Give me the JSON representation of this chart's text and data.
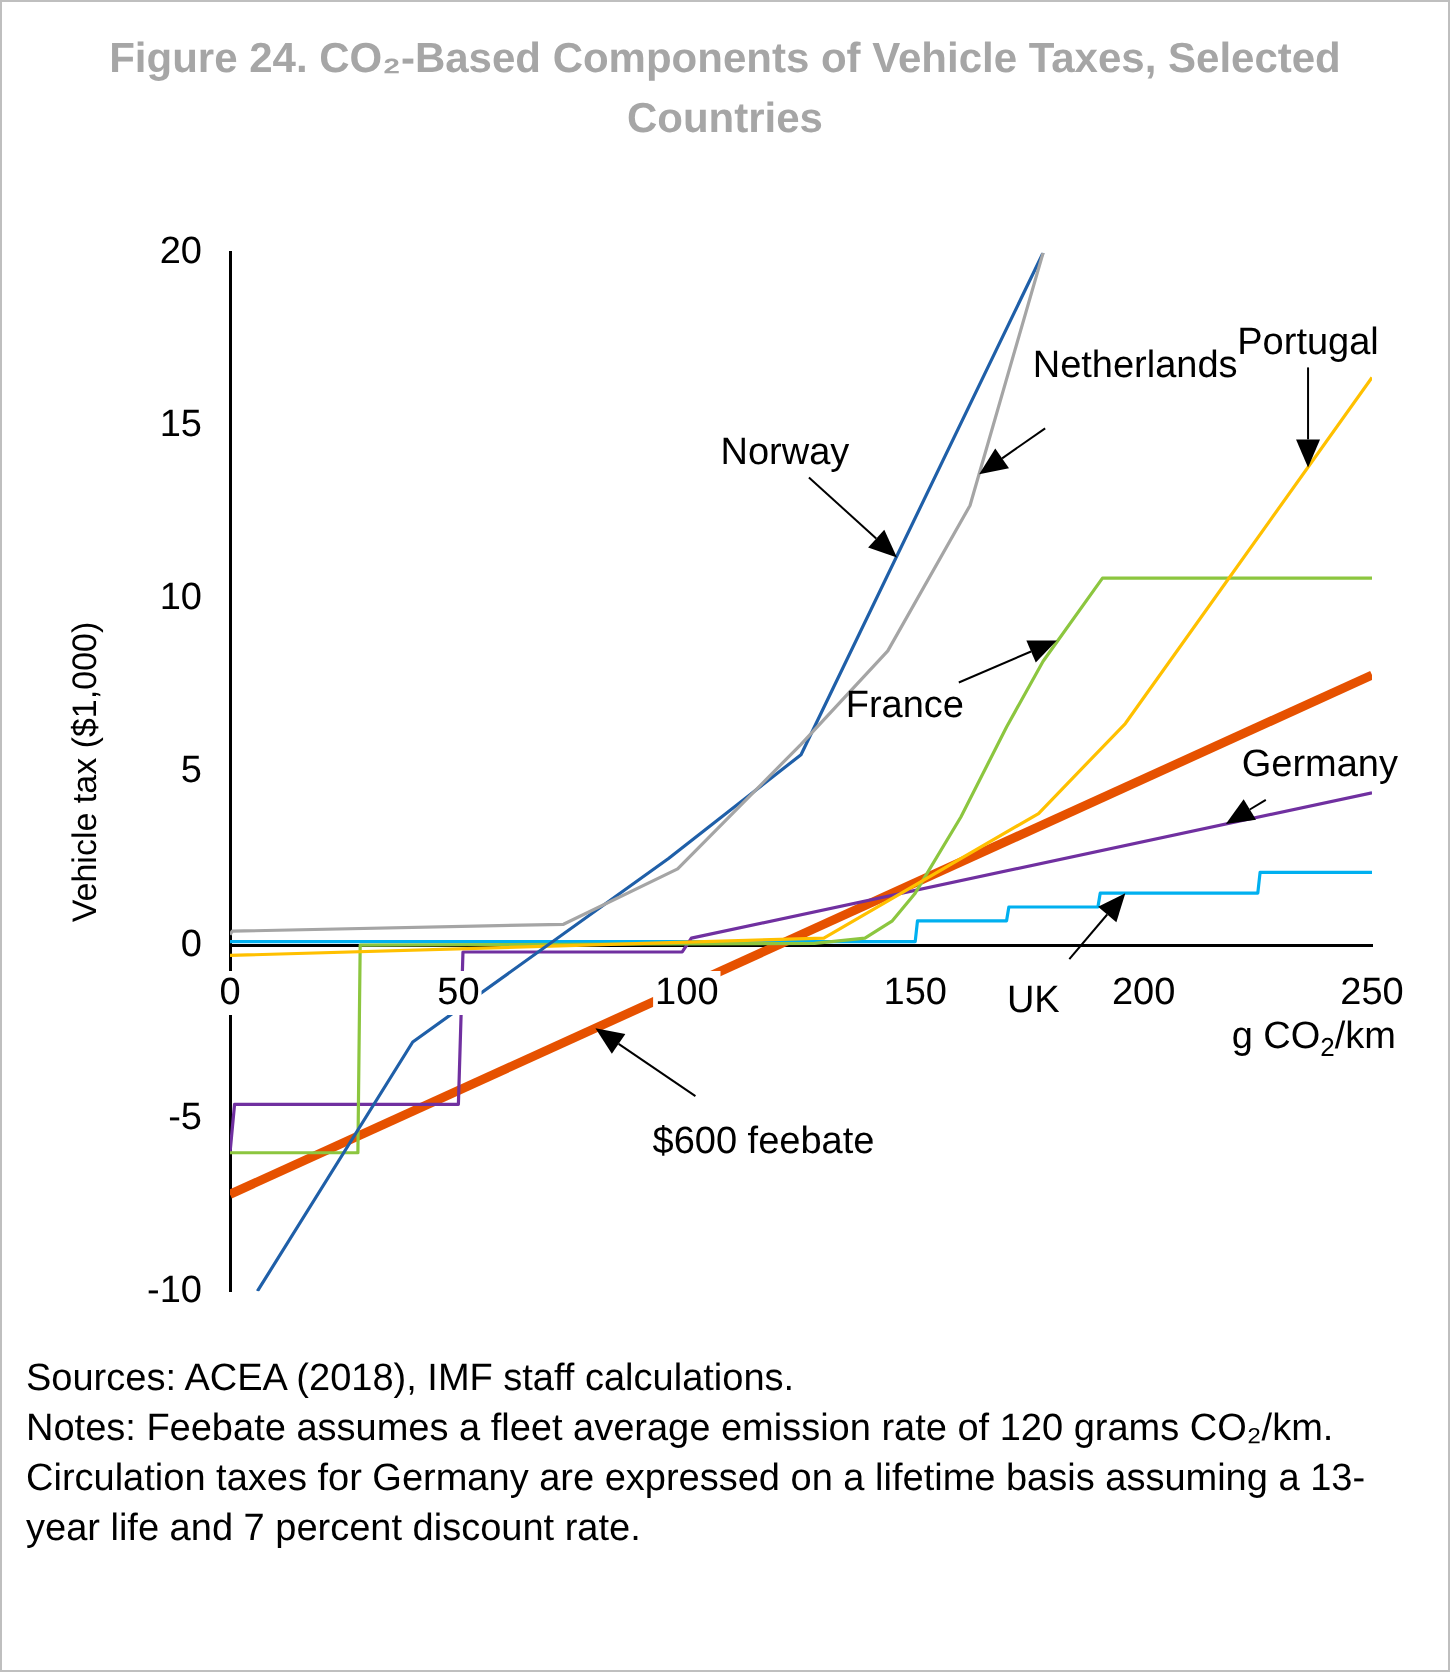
{
  "chart_data": {
    "type": "line",
    "title": "Figure 24. CO₂-Based Components of Vehicle Taxes, Selected Countries",
    "xlabel": "g CO$_{2}$/km",
    "ylabel": "Vehicle tax ($1,000)",
    "xlim": [
      0,
      250
    ],
    "xticks": [
      0,
      50,
      100,
      150,
      200,
      250
    ],
    "ylim": [
      -10,
      20
    ],
    "yticks": [
      -10,
      -5,
      0,
      5,
      10,
      15,
      20
    ],
    "grid": false,
    "legend": false,
    "marker": "none",
    "line_style": "solid",
    "series": [
      {
        "color": "#a5a5a5",
        "x": [
          0,
          0.5,
          73,
          98,
          125,
          144,
          162,
          178
        ],
        "values": [
          0.3,
          0.4,
          0.6,
          2.2,
          5.8,
          8.5,
          12.7,
          20
        ]
      },
      {
        "color": "#1f5fa8",
        "x": [
          6,
          40,
          96,
          125,
          178
        ],
        "values": [
          -10,
          -2.8,
          2.5,
          5.5,
          20
        ]
      },
      {
        "color": "#ffc000",
        "x": [
          0,
          130,
          177,
          196,
          250
        ],
        "values": [
          -0.3,
          0.2,
          3.8,
          6.4,
          16.4
        ]
      },
      {
        "color": "#8cc63f",
        "x": [
          0,
          28,
          28.5,
          128,
          139,
          145,
          150,
          160,
          170,
          178,
          191,
          250
        ],
        "values": [
          -6,
          -6,
          0,
          0.05,
          0.2,
          0.7,
          1.5,
          3.7,
          6.3,
          8.2,
          10.6,
          10.6
        ]
      },
      {
        "color": "#7030a0",
        "x": [
          0,
          1,
          50,
          51,
          99,
          101,
          250
        ],
        "values": [
          -6,
          -4.6,
          -4.6,
          -0.2,
          -0.2,
          0.2,
          4.4
        ]
      },
      {
        "color": "#00b0f0",
        "x": [
          0,
          150,
          150.5,
          170,
          170.5,
          190,
          190.5,
          225,
          225.5,
          250
        ],
        "values": [
          0.1,
          0.1,
          0.7,
          0.7,
          1.1,
          1.1,
          1.5,
          1.5,
          2.1,
          2.1
        ]
      },
      {
        "color": "#e65100",
        "x": [
          0,
          250
        ],
        "values": [
          -7.2,
          7.8
        ]
      }
    ],
    "annotations": [
      {
        "text": "Norway",
        "x": 146,
        "y": 11.2
      },
      {
        "text": "Netherlands",
        "x": 164,
        "y": 13.6
      },
      {
        "text": "Portugal",
        "x": 236,
        "y": 13.8
      },
      {
        "text": "France",
        "x": 181,
        "y": 8.8
      },
      {
        "text": "Germany",
        "x": 218,
        "y": 3.5
      },
      {
        "text": "UK",
        "x": 196,
        "y": 1.5
      },
      {
        "text": "$600 feebate",
        "x": 80,
        "y": -2.4
      },
      "Sources: ACEA (2018), IMF staff calculations.",
      "Notes: Feebate assumes a fleet average emission rate of 120 grams CO₂/km. Circulation taxes for Germany are expressed on a lifetime basis assuming a 13-year life and 7 percent discount rate."
    ]
  }
}
